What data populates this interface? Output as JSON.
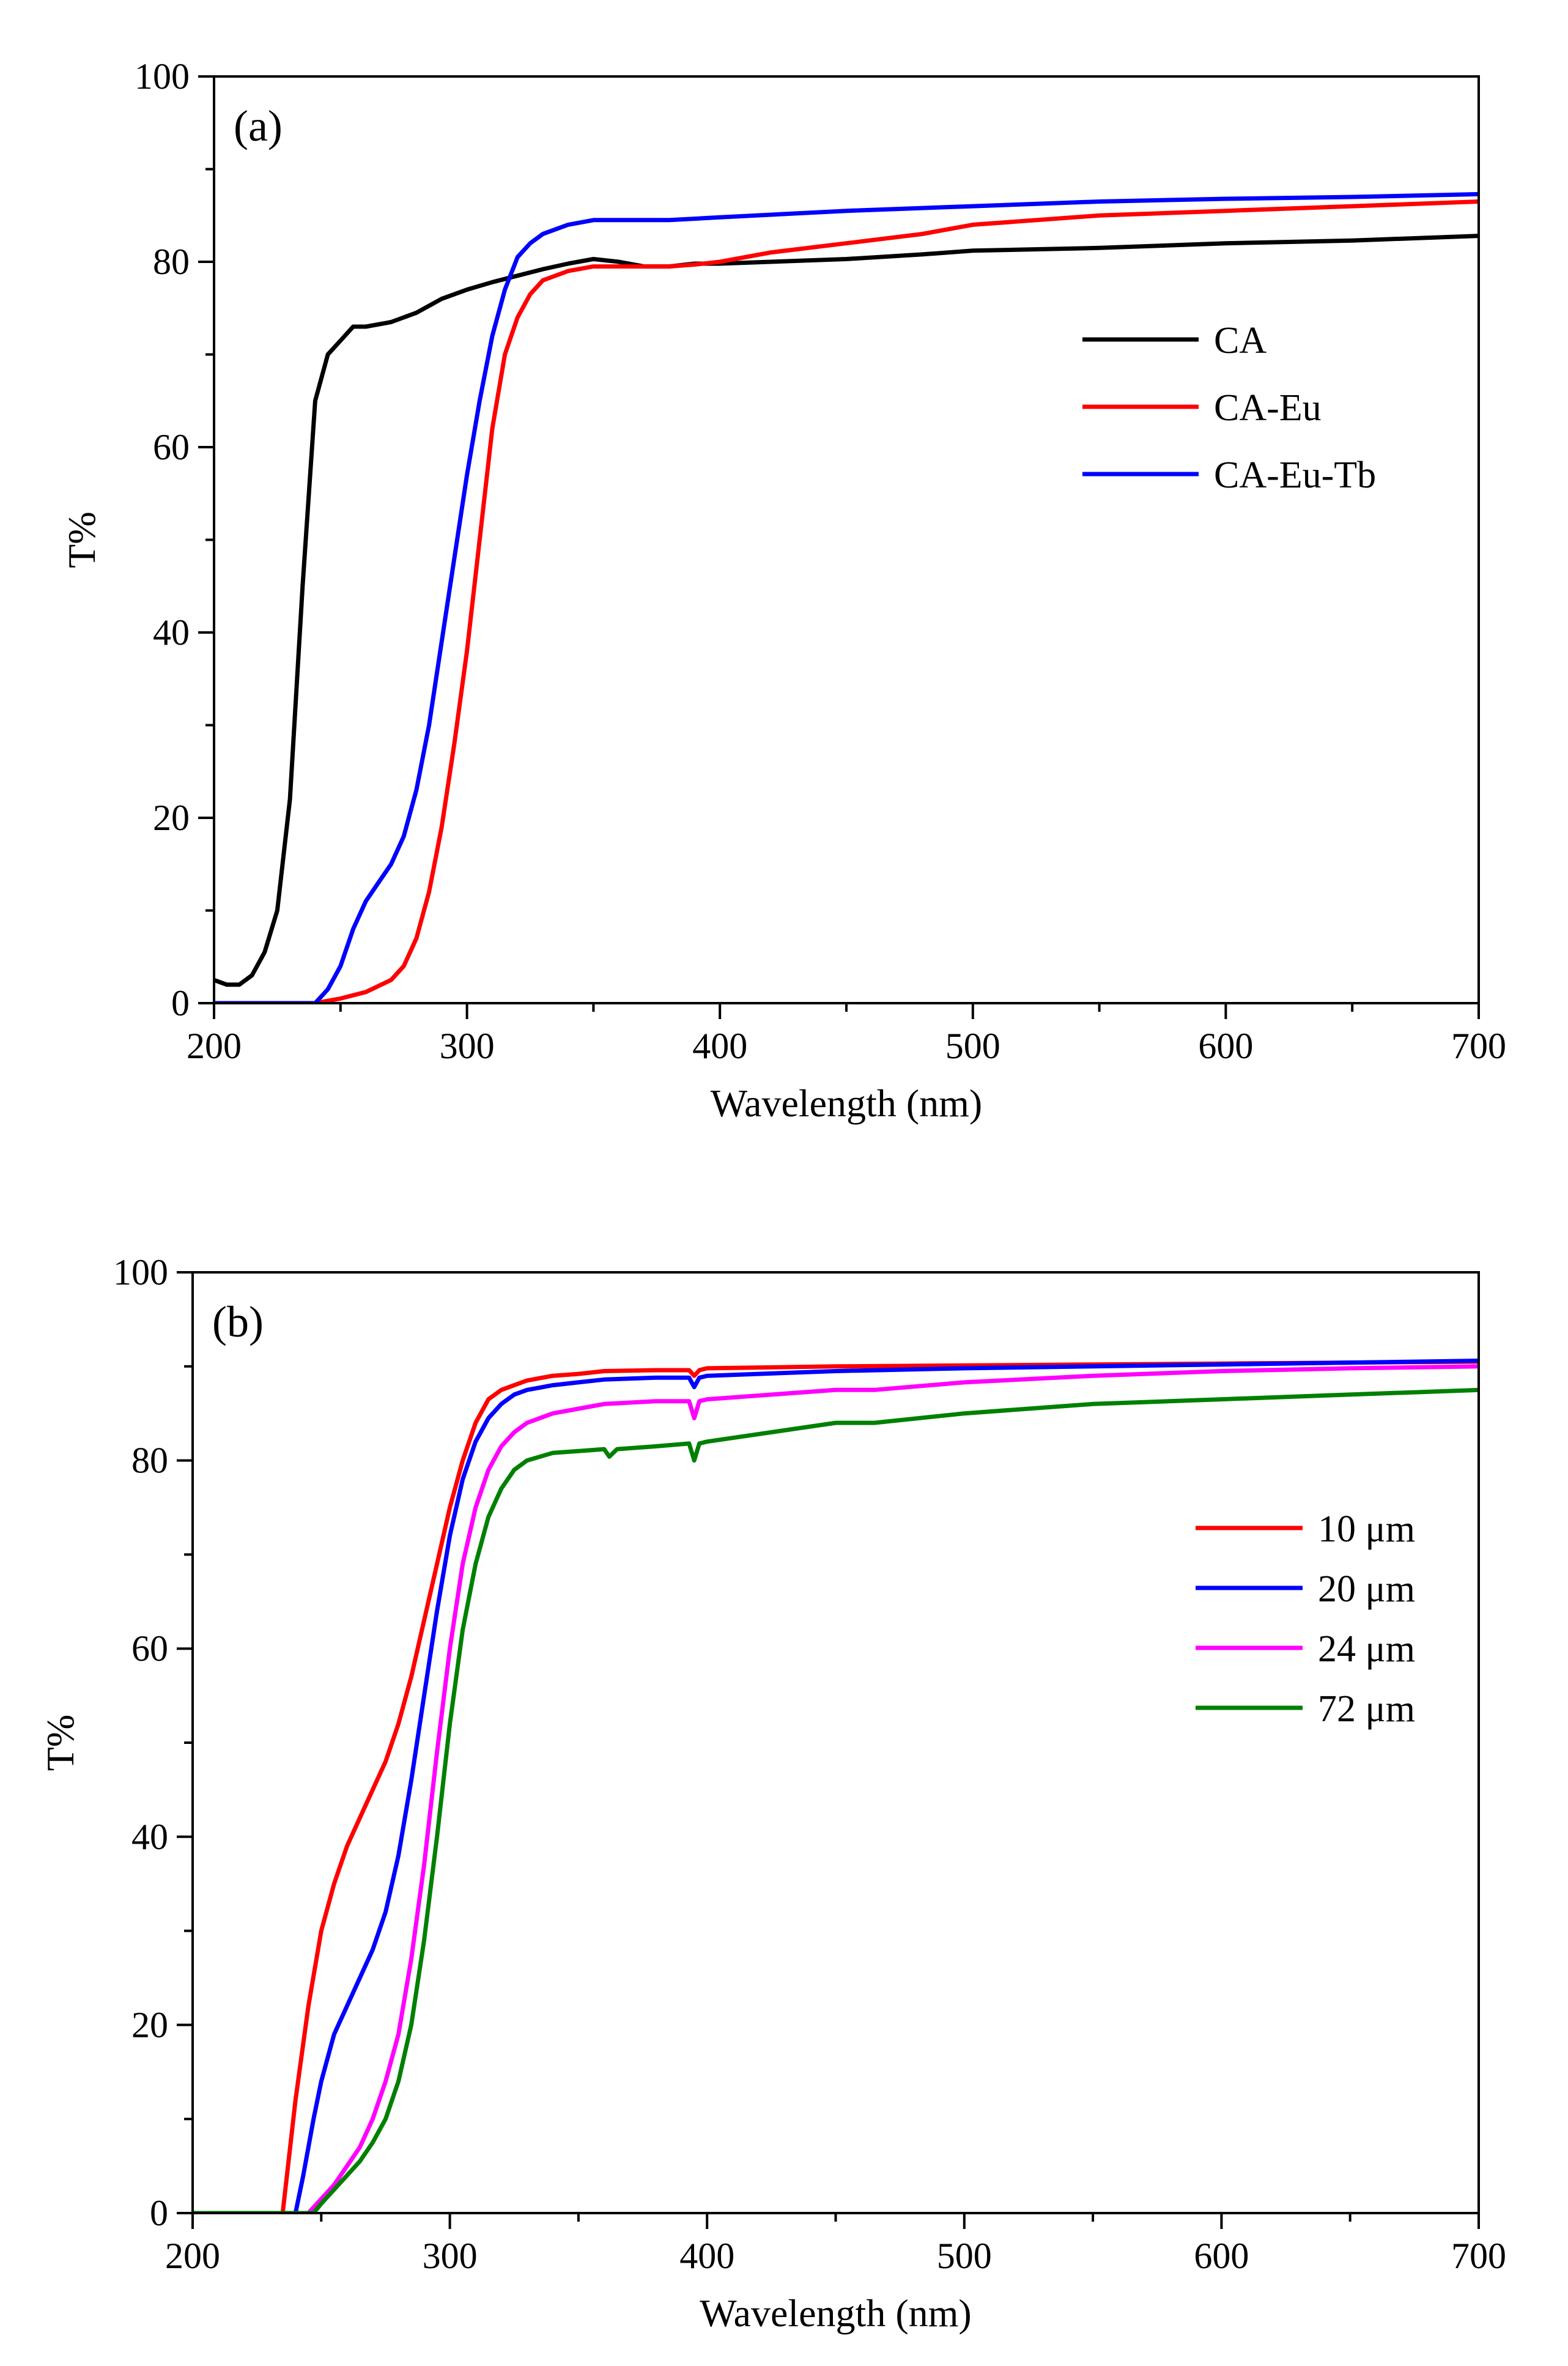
{
  "chart_data": [
    {
      "type": "line",
      "panel_label": "(a)",
      "xlabel": "Wavelength (nm)",
      "ylabel": "T%",
      "xlim": [
        200,
        700
      ],
      "ylim": [
        0,
        100
      ],
      "xticks": [
        200,
        300,
        400,
        500,
        600,
        700
      ],
      "yticks": [
        0,
        20,
        40,
        60,
        80,
        100
      ],
      "legend_position": "right-middle",
      "series": [
        {
          "name": "CA",
          "color": "#000000",
          "x": [
            200,
            205,
            210,
            215,
            220,
            225,
            230,
            235,
            240,
            245,
            250,
            255,
            260,
            270,
            280,
            290,
            300,
            310,
            320,
            330,
            340,
            350,
            360,
            370,
            380,
            390,
            400,
            420,
            450,
            480,
            500,
            550,
            600,
            650,
            700
          ],
          "y": [
            2.5,
            2,
            2,
            3,
            5.5,
            10,
            22,
            45,
            65,
            70,
            71.5,
            73,
            73,
            73.5,
            74.5,
            76,
            77,
            77.8,
            78.5,
            79.2,
            79.8,
            80.3,
            80,
            79.5,
            79.5,
            79.8,
            79.8,
            80,
            80.3,
            80.8,
            81.2,
            81.5,
            82,
            82.3,
            82.8
          ]
        },
        {
          "name": "CA-Eu",
          "color": "#ff0000",
          "x": [
            200,
            240,
            250,
            260,
            270,
            275,
            280,
            285,
            290,
            295,
            300,
            305,
            310,
            315,
            320,
            325,
            330,
            340,
            350,
            360,
            370,
            380,
            390,
            400,
            420,
            450,
            480,
            500,
            550,
            600,
            650,
            700
          ],
          "y": [
            0,
            0,
            0.5,
            1.2,
            2.5,
            4,
            7,
            12,
            19,
            28,
            38,
            50,
            62,
            70,
            74,
            76.5,
            78,
            79,
            79.5,
            79.5,
            79.5,
            79.5,
            79.7,
            80,
            81,
            82,
            83,
            84,
            85,
            85.5,
            86,
            86.5
          ]
        },
        {
          "name": "CA-Eu-Tb",
          "color": "#0000ff",
          "x": [
            200,
            240,
            245,
            250,
            255,
            260,
            265,
            270,
            275,
            280,
            285,
            290,
            295,
            300,
            305,
            310,
            315,
            320,
            325,
            330,
            340,
            350,
            360,
            380,
            400,
            450,
            500,
            550,
            600,
            650,
            700
          ],
          "y": [
            0,
            0,
            1.5,
            4,
            8,
            11,
            13,
            15,
            18,
            23,
            30,
            39,
            48,
            57,
            65,
            72,
            77,
            80.5,
            82,
            83,
            84,
            84.5,
            84.5,
            84.5,
            84.8,
            85.5,
            86,
            86.5,
            86.8,
            87,
            87.3
          ]
        }
      ]
    },
    {
      "type": "line",
      "panel_label": "(b)",
      "xlabel": "Wavelength (nm)",
      "ylabel": "T%",
      "xlim": [
        200,
        700
      ],
      "ylim": [
        0,
        100
      ],
      "xticks": [
        200,
        300,
        400,
        500,
        600,
        700
      ],
      "yticks": [
        0,
        20,
        40,
        60,
        80,
        100
      ],
      "legend_position": "right-middle",
      "series": [
        {
          "name": "10 μm",
          "color": "#ff0000",
          "x": [
            200,
            235,
            240,
            245,
            250,
            255,
            260,
            265,
            270,
            275,
            280,
            285,
            290,
            295,
            300,
            305,
            310,
            315,
            320,
            325,
            330,
            340,
            350,
            360,
            380,
            393,
            395,
            397,
            400,
            450,
            500,
            550,
            600,
            650,
            700
          ],
          "y": [
            0,
            0,
            12,
            22,
            30,
            35,
            39,
            42,
            45,
            48,
            52,
            57,
            63,
            69,
            75,
            80,
            84,
            86.5,
            87.5,
            88,
            88.5,
            89,
            89.2,
            89.5,
            89.6,
            89.6,
            89.0,
            89.6,
            89.8,
            90,
            90.1,
            90.2,
            90.3,
            90.4,
            90.5
          ]
        },
        {
          "name": "20 μm",
          "color": "#0000ff",
          "x": [
            200,
            240,
            243,
            247,
            250,
            255,
            260,
            265,
            270,
            275,
            280,
            285,
            290,
            295,
            300,
            305,
            310,
            315,
            320,
            325,
            330,
            340,
            350,
            360,
            380,
            393,
            395,
            397,
            400,
            450,
            500,
            550,
            600,
            650,
            700
          ],
          "y": [
            0,
            0,
            4,
            10,
            14,
            19,
            22,
            25,
            28,
            32,
            38,
            46,
            55,
            64,
            72,
            78,
            82,
            84.5,
            86,
            87,
            87.5,
            88,
            88.3,
            88.6,
            88.8,
            88.8,
            87.8,
            88.8,
            89,
            89.5,
            89.8,
            90,
            90.2,
            90.4,
            90.6
          ]
        },
        {
          "name": "24 μm",
          "color": "#ff00ff",
          "x": [
            200,
            245,
            250,
            255,
            260,
            265,
            270,
            275,
            280,
            285,
            290,
            295,
            300,
            305,
            310,
            315,
            320,
            325,
            330,
            340,
            350,
            360,
            380,
            393,
            395,
            397,
            400,
            450,
            465,
            500,
            550,
            600,
            650,
            700
          ],
          "y": [
            0,
            0,
            1.5,
            3,
            5,
            7,
            10,
            14,
            19,
            27,
            37,
            49,
            60,
            69,
            75,
            79,
            81.5,
            83,
            84,
            85,
            85.5,
            86,
            86.3,
            86.3,
            84.5,
            86.3,
            86.5,
            87.5,
            87.5,
            88.3,
            89,
            89.5,
            89.8,
            90
          ]
        },
        {
          "name": "72 μm",
          "color": "#008000",
          "x": [
            200,
            247,
            250,
            255,
            260,
            265,
            270,
            275,
            280,
            285,
            290,
            295,
            300,
            305,
            310,
            315,
            320,
            325,
            330,
            340,
            350,
            360,
            362,
            365,
            380,
            393,
            395,
            397,
            400,
            450,
            465,
            500,
            550,
            600,
            650,
            700
          ],
          "y": [
            0,
            0,
            1,
            2.5,
            4,
            5.5,
            7.5,
            10,
            14,
            20,
            29,
            40,
            52,
            62,
            69,
            74,
            77,
            79,
            80,
            80.8,
            81,
            81.2,
            80.4,
            81.2,
            81.5,
            81.8,
            80,
            81.8,
            82,
            84,
            84,
            85,
            86,
            86.5,
            87,
            87.5
          ]
        }
      ]
    }
  ]
}
